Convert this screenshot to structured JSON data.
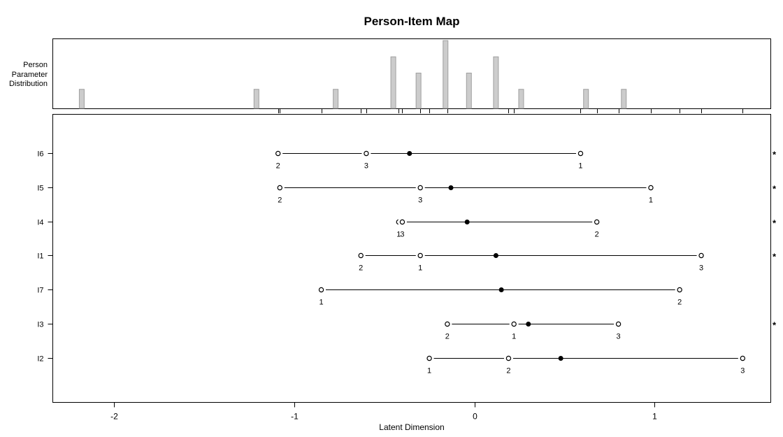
{
  "chart_data": {
    "type": "person-item-map",
    "title": "Person-Item Map",
    "xlabel": "Latent Dimension",
    "top_panel_label_lines": [
      "Person",
      "Parameter",
      "Distribution"
    ],
    "star_symbol": "*",
    "x_ticks": [
      {
        "value": -2,
        "label": "-2"
      },
      {
        "value": -1,
        "label": "-1"
      },
      {
        "value": 0,
        "label": "0"
      },
      {
        "value": 1,
        "label": "1"
      }
    ],
    "xlim": [
      -2.34,
      1.65
    ],
    "legend_note": "grid off; histogram of person parameters on top; open circles = thresholds; filled dot = item location; * = unordered thresholds",
    "histogram": {
      "bars": [
        {
          "value": -2.18,
          "count": 1
        },
        {
          "value": -1.21,
          "count": 1
        },
        {
          "value": -0.77,
          "count": 1
        },
        {
          "value": -0.45,
          "count": 3
        },
        {
          "value": -0.31,
          "count": 2
        },
        {
          "value": -0.16,
          "count": 4
        },
        {
          "value": -0.03,
          "count": 2
        },
        {
          "value": 0.12,
          "count": 3
        },
        {
          "value": 0.26,
          "count": 1
        },
        {
          "value": 0.62,
          "count": 1
        },
        {
          "value": 0.83,
          "count": 1
        }
      ]
    },
    "items": [
      {
        "label": "I6",
        "location": -0.36,
        "starred": true,
        "thresholds": [
          {
            "category": "2",
            "value": -1.09
          },
          {
            "category": "3",
            "value": -0.6
          },
          {
            "category": "1",
            "value": 0.59
          }
        ]
      },
      {
        "label": "I5",
        "location": -0.13,
        "starred": true,
        "thresholds": [
          {
            "category": "2",
            "value": -1.08
          },
          {
            "category": "3",
            "value": -0.3
          },
          {
            "category": "1",
            "value": 0.98
          }
        ]
      },
      {
        "label": "I4",
        "location": -0.04,
        "starred": true,
        "thresholds": [
          {
            "category": "1",
            "value": -0.42
          },
          {
            "category": "3",
            "value": -0.4
          },
          {
            "category": "2",
            "value": 0.68
          }
        ]
      },
      {
        "label": "I1",
        "location": 0.12,
        "starred": true,
        "thresholds": [
          {
            "category": "2",
            "value": -0.63
          },
          {
            "category": "1",
            "value": -0.3
          },
          {
            "category": "3",
            "value": 1.26
          }
        ]
      },
      {
        "label": "I7",
        "location": 0.15,
        "starred": false,
        "thresholds": [
          {
            "category": "1",
            "value": -0.85
          },
          {
            "category": "2",
            "value": 1.14
          }
        ]
      },
      {
        "label": "I3",
        "location": 0.3,
        "starred": true,
        "thresholds": [
          {
            "category": "2",
            "value": -0.15
          },
          {
            "category": "1",
            "value": 0.22
          },
          {
            "category": "3",
            "value": 0.8
          }
        ]
      },
      {
        "label": "I2",
        "location": 0.48,
        "starred": false,
        "thresholds": [
          {
            "category": "1",
            "value": -0.25
          },
          {
            "category": "2",
            "value": 0.19
          },
          {
            "category": "3",
            "value": 1.49
          }
        ]
      }
    ],
    "colors": {
      "bar_fill": "#cccccc",
      "bar_stroke": "#9f9f9f",
      "axis": "#000000",
      "background": "#ffffff"
    }
  }
}
